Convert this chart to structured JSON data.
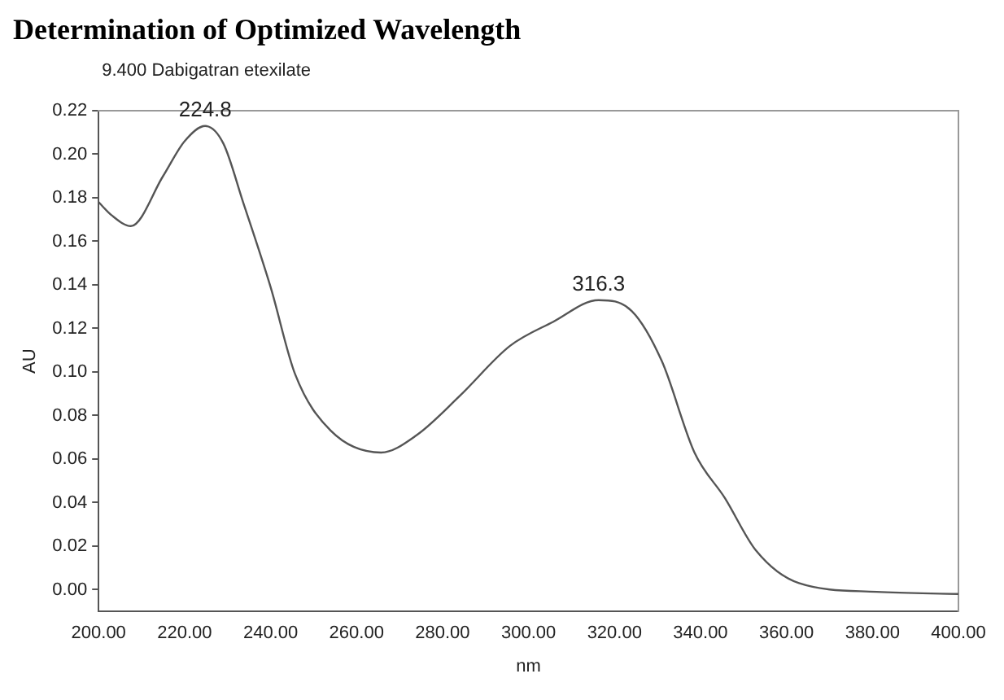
{
  "chart_data": {
    "type": "line",
    "title": "Determination of Optimized Wavelength",
    "subtitle": "9.400 Dabigatran etexilate",
    "xlabel": "nm",
    "ylabel": "AU",
    "x": [
      200,
      203,
      207.5,
      215,
      220,
      224.8,
      229,
      233.6,
      240,
      245.7,
      254,
      265.7,
      274,
      284,
      295.7,
      305.7,
      316.3,
      324,
      331,
      338.6,
      345.7,
      352.9,
      362.9,
      381,
      400
    ],
    "series": [
      {
        "color": "#555555",
        "values": [
          0.178,
          0.172,
          0.167,
          0.19,
          0.206,
          0.213,
          0.205,
          0.178,
          0.139,
          0.099,
          0.073,
          0.063,
          0.071,
          0.089,
          0.112,
          0.123,
          0.133,
          0.128,
          0.105,
          0.063,
          0.042,
          0.018,
          0.003,
          -0.001,
          -0.002
        ]
      }
    ],
    "annotations": [
      {
        "text": "224.8",
        "x": 224.8,
        "y": 0.213
      },
      {
        "text": "316.3",
        "x": 316.3,
        "y": 0.133
      }
    ],
    "xlim": [
      200,
      400
    ],
    "xticks": [
      {
        "value": 200,
        "label": "200.00"
      },
      {
        "value": 220,
        "label": "220.00"
      },
      {
        "value": 240,
        "label": "240.00"
      },
      {
        "value": 260,
        "label": "260.00"
      },
      {
        "value": 280,
        "label": "280.00"
      },
      {
        "value": 300,
        "label": "300.00"
      },
      {
        "value": 320,
        "label": "320.00"
      },
      {
        "value": 340,
        "label": "340.00"
      },
      {
        "value": 360,
        "label": "360.00"
      },
      {
        "value": 380,
        "label": "380.00"
      },
      {
        "value": 400,
        "label": "400.00"
      }
    ],
    "ylim": [
      -0.01,
      0.22
    ],
    "yticks": [
      {
        "value": 0,
        "label": "0.00"
      },
      {
        "value": 0.02,
        "label": "0.02"
      },
      {
        "value": 0.04,
        "label": "0.04"
      },
      {
        "value": 0.06,
        "label": "0.06"
      },
      {
        "value": 0.08,
        "label": "0.08"
      },
      {
        "value": 0.1,
        "label": "0.10"
      },
      {
        "value": 0.12,
        "label": "0.12"
      },
      {
        "value": 0.14,
        "label": "0.14"
      },
      {
        "value": 0.16,
        "label": "0.16"
      },
      {
        "value": 0.18,
        "label": "0.18"
      },
      {
        "value": 0.2,
        "label": "0.20"
      },
      {
        "value": 0.22,
        "label": "0.22"
      }
    ],
    "grid": false,
    "legend": false,
    "marker": "none",
    "line_style": "solid"
  }
}
